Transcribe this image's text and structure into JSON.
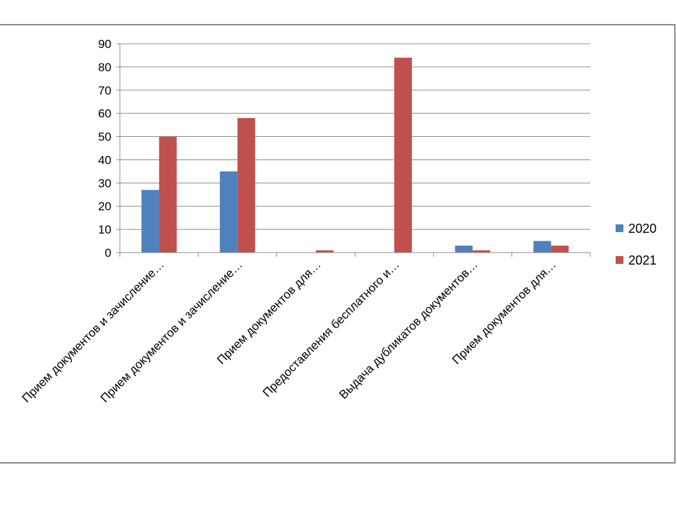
{
  "chart_data": {
    "type": "bar",
    "categories": [
      "Прием документов и зачисление…",
      "Прием документов и зачисление…",
      "Прием документов для…",
      "Предоставления бесплатного и…",
      "Выдача дубликатов документов…",
      "Прием документов для…"
    ],
    "series": [
      {
        "name": "2020",
        "color": "#4f81bd",
        "values": [
          27,
          35,
          0,
          0,
          3,
          5
        ]
      },
      {
        "name": "2021",
        "color": "#c0504d",
        "values": [
          50,
          58,
          1,
          84,
          1,
          3
        ]
      }
    ],
    "ylim": [
      0,
      90
    ],
    "yticks": [
      0,
      10,
      20,
      30,
      40,
      50,
      60,
      70,
      80,
      90
    ],
    "grid": true,
    "legend": "right",
    "title": "",
    "xlabel": "",
    "ylabel": ""
  }
}
